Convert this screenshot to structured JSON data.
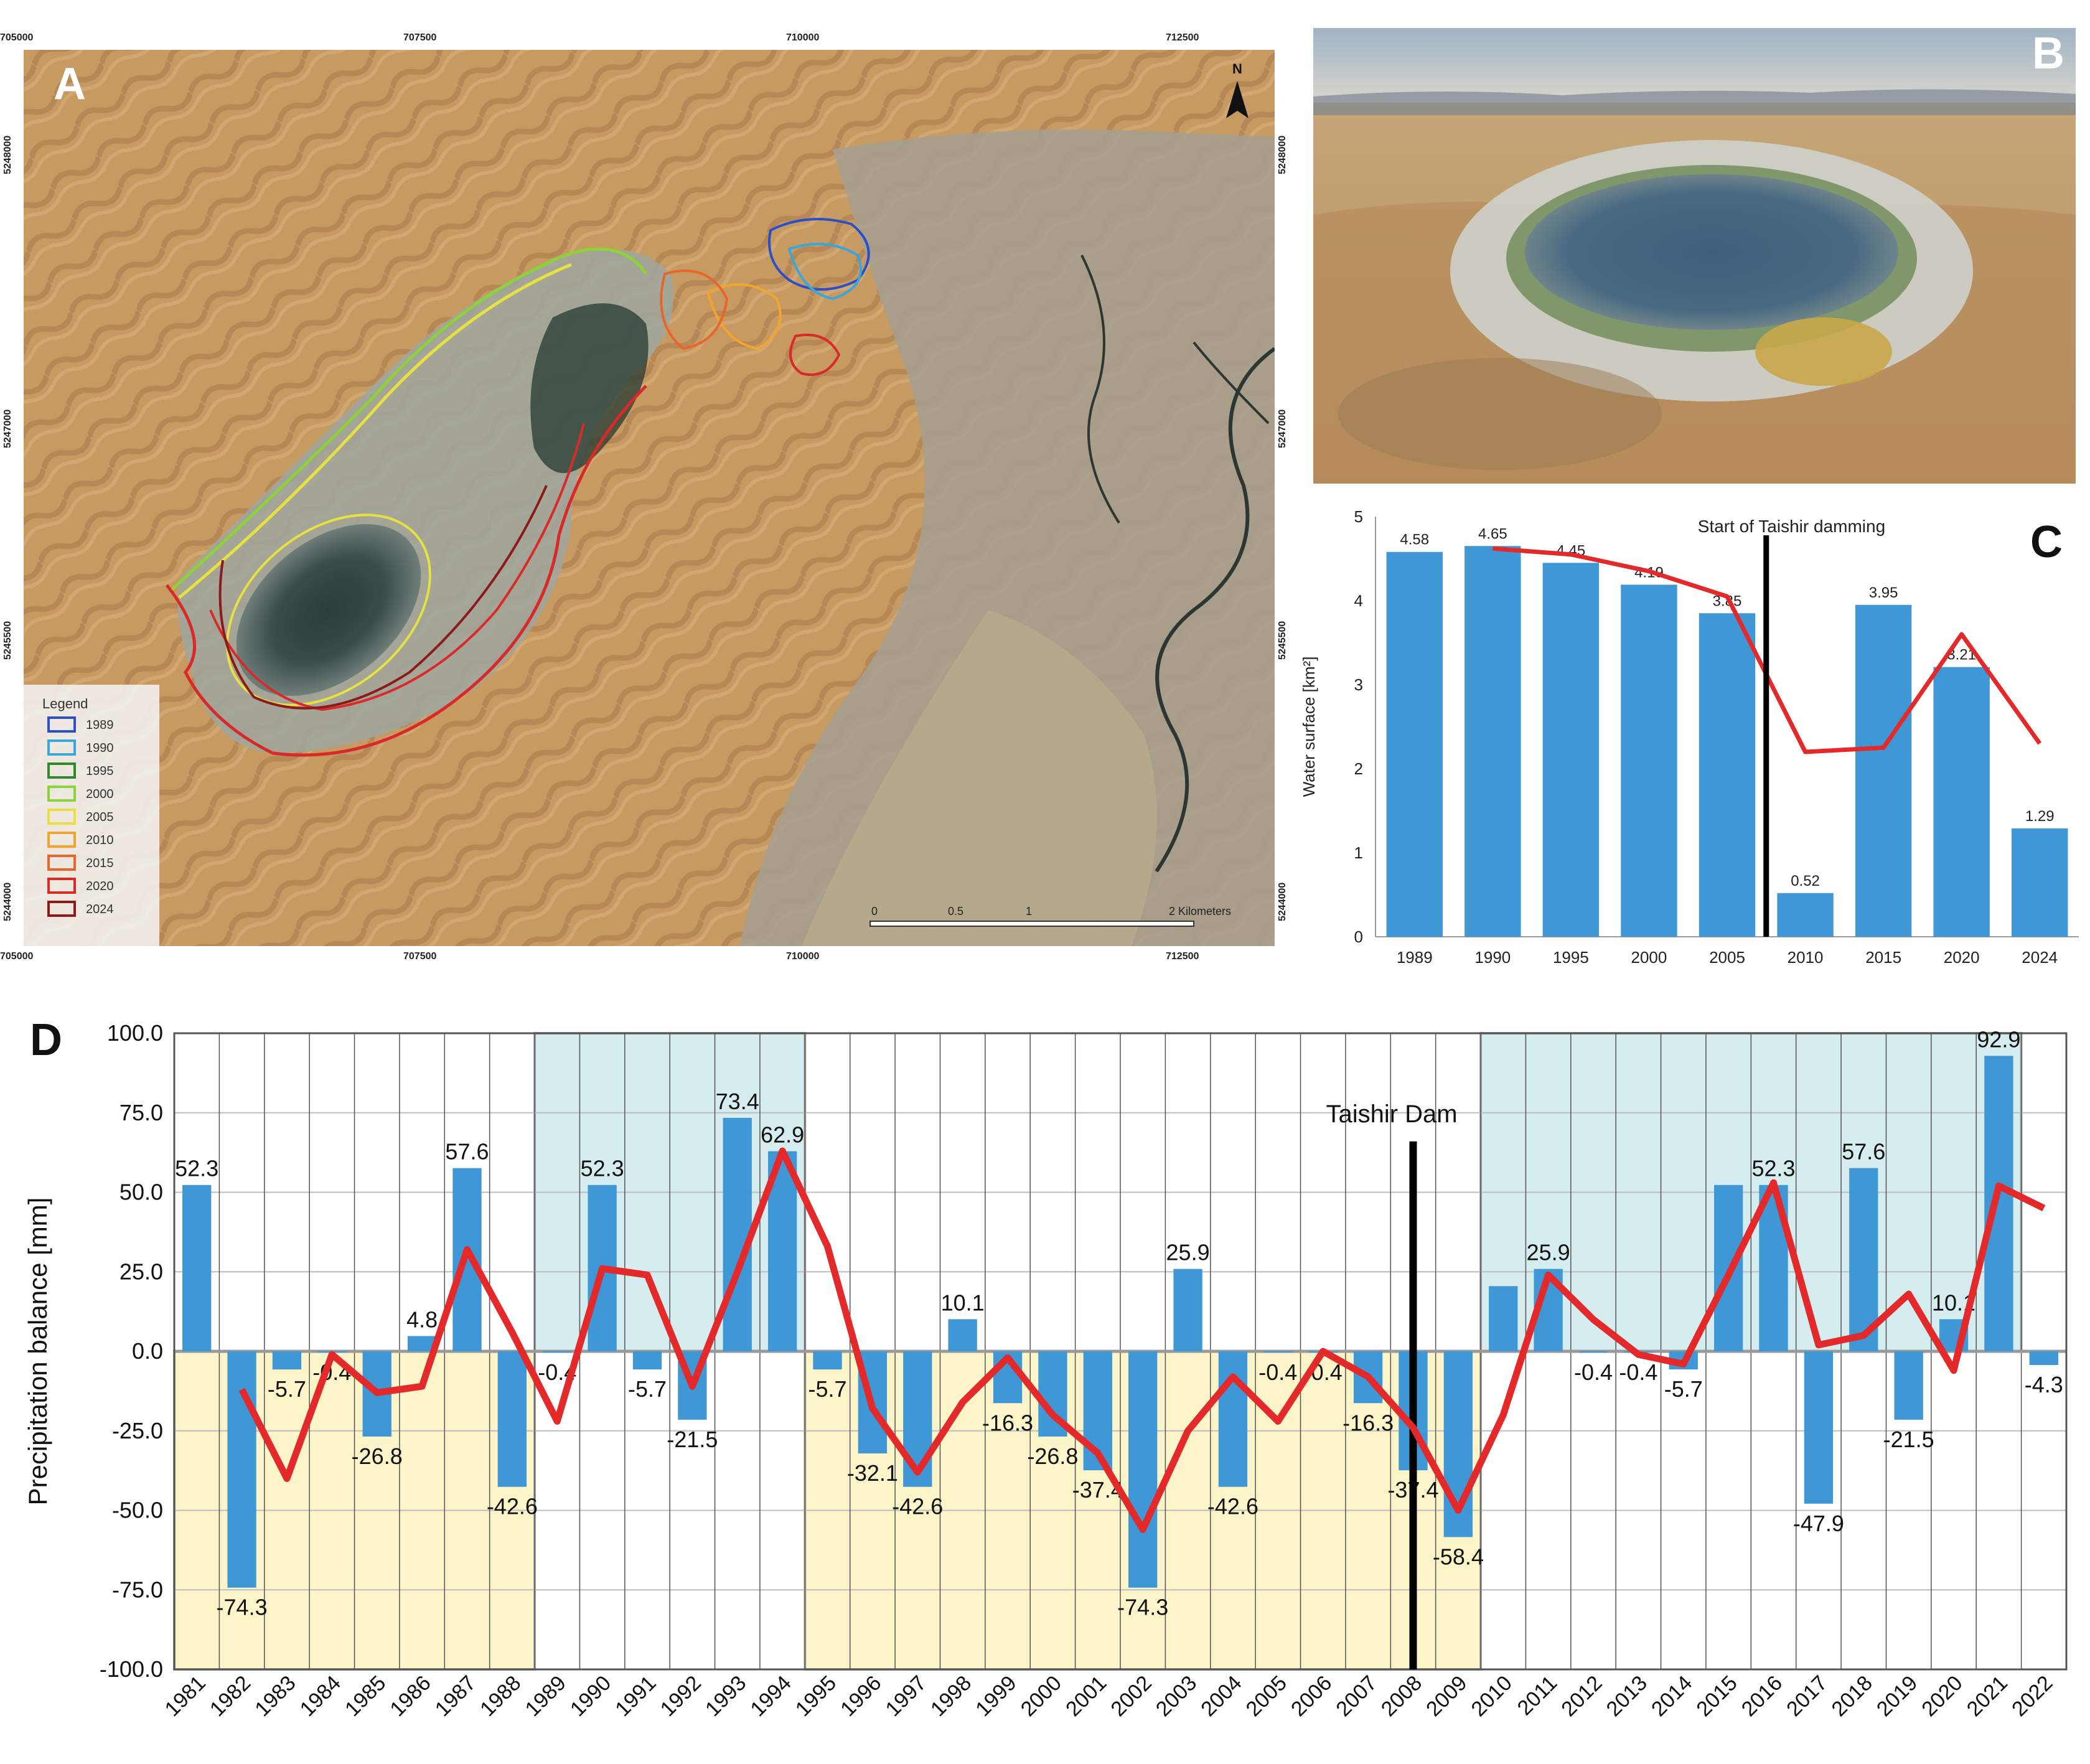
{
  "panel_labels": {
    "a": "A",
    "b": "B",
    "c": "C",
    "d": "D"
  },
  "map_a": {
    "top_ticks": [
      "705000",
      "707500",
      "710000",
      "712500"
    ],
    "bottom_ticks": [
      "705000",
      "707500",
      "710000",
      "712500"
    ],
    "left_ticks": [
      "5248000",
      "5247000",
      "5245500",
      "5244000"
    ],
    "right_ticks": [
      "5248000",
      "5247000",
      "5245500",
      "5244000"
    ],
    "north_label": "N",
    "legend_title": "Legend",
    "legend": [
      {
        "year": "1989",
        "color": "#2a4fc8"
      },
      {
        "year": "1990",
        "color": "#3aa7d8"
      },
      {
        "year": "1995",
        "color": "#2f8a2f"
      },
      {
        "year": "2000",
        "color": "#8fd13a"
      },
      {
        "year": "2005",
        "color": "#e6e043"
      },
      {
        "year": "2010",
        "color": "#f0a530"
      },
      {
        "year": "2015",
        "color": "#e8662b"
      },
      {
        "year": "2020",
        "color": "#d92a2a"
      },
      {
        "year": "2024",
        "color": "#8c1a1a"
      }
    ],
    "scale_labels": [
      "0",
      "0.5",
      "1",
      "2 Kilometers"
    ]
  },
  "chart_data": [
    {
      "type": "bar",
      "panel": "C",
      "categories": [
        "1989",
        "1990",
        "1995",
        "2000",
        "2005",
        "2010",
        "2015",
        "2020",
        "2024"
      ],
      "values": [
        4.58,
        4.65,
        4.45,
        4.19,
        3.85,
        0.52,
        3.95,
        3.21,
        1.29
      ],
      "value_labels": [
        "4.58",
        "4.65",
        "4.45",
        "4.19",
        "3.85",
        "0.52",
        "3.95",
        "3.21",
        "1.29"
      ],
      "trend_line": [
        null,
        4.62,
        4.55,
        4.35,
        4.05,
        2.2,
        2.25,
        3.6,
        2.3
      ],
      "ylabel": "Water surface [km²]",
      "ylim": [
        0,
        5
      ],
      "yticks": [
        "0",
        "1",
        "2",
        "3",
        "4",
        "5"
      ],
      "annotation": "Start of Taishir damming",
      "annotation_x": 2007.5,
      "bar_color": "#3f97d6",
      "line_color": "#e3292a",
      "grid": false
    },
    {
      "type": "bar",
      "panel": "D",
      "categories": [
        "1981",
        "1982",
        "1983",
        "1984",
        "1985",
        "1986",
        "1987",
        "1988",
        "1989",
        "1990",
        "1991",
        "1992",
        "1993",
        "1994",
        "1995",
        "1996",
        "1997",
        "1998",
        "1999",
        "2000",
        "2001",
        "2002",
        "2003",
        "2004",
        "2005",
        "2006",
        "2007",
        "2008",
        "2009",
        "2010",
        "2011",
        "2012",
        "2013",
        "2014",
        "2015",
        "2016",
        "2017",
        "2018",
        "2019",
        "2020",
        "2021",
        "2022"
      ],
      "values": [
        52.3,
        -74.3,
        -5.7,
        -0.4,
        -26.8,
        4.8,
        57.6,
        -42.6,
        -0.4,
        52.3,
        -5.7,
        -21.5,
        73.4,
        62.9,
        -5.7,
        -32.1,
        -42.6,
        10.1,
        -16.3,
        -26.8,
        -37.4,
        -74.3,
        25.9,
        -42.6,
        -0.4,
        -0.4,
        -16.3,
        -37.4,
        -58.4,
        20.5,
        25.9,
        -0.4,
        -0.4,
        -5.7,
        52.3,
        52.3,
        -47.9,
        57.6,
        -21.5,
        10.1,
        92.9,
        -4.3
      ],
      "value_labels": [
        "52.3",
        "-74.3",
        "-5.7",
        "-0.4",
        "-26.8",
        "4.8",
        "57.6",
        "-42.6",
        "-0.4",
        "52.3",
        "-5.7",
        "-21.5",
        "73.4",
        "62.9",
        "-5.7",
        "-32.1",
        "-42.6",
        "10.1",
        "-16.3",
        "-26.8",
        "-37.4",
        "-74.3",
        "25.9",
        "-42.6",
        "-0.4",
        "-0.4",
        "-16.3",
        "-37.4",
        "-58.4",
        "",
        "25.9",
        "-0.4",
        "-0.4",
        "-5.7",
        "",
        "52.3",
        "-47.9",
        "57.6",
        "-21.5",
        "10.1",
        "92.9",
        "-4.3"
      ],
      "trend_line": [
        null,
        -12,
        -40,
        -1,
        -13,
        -11,
        32,
        6,
        -22,
        26,
        24,
        -11,
        25,
        63,
        33,
        -18,
        -38,
        -16,
        -2,
        -20,
        -32,
        -56,
        -25,
        -8,
        -22,
        0,
        -8,
        -24,
        -50,
        -20,
        24,
        10,
        -1,
        -4,
        24,
        53,
        2,
        5,
        18,
        -6,
        52,
        45
      ],
      "ylabel": "Precipitation balance [mm]",
      "ylim": [
        -100,
        100
      ],
      "yticks": [
        "-100.0",
        "-75.0",
        "-50.0",
        "-25.0",
        "0.0",
        "25.0",
        "50.0",
        "75.0",
        "100.0"
      ],
      "annotation": "Taishir Dam",
      "annotation_x": 2008,
      "wet_periods": [
        [
          "1989",
          "1994"
        ],
        [
          "2010",
          "2021"
        ]
      ],
      "dry_periods": [
        [
          "1981",
          "1988"
        ],
        [
          "1995",
          "2009"
        ]
      ],
      "bar_color": "#3f97d6",
      "line_color": "#e3292a",
      "wet_color": "#d6edf0",
      "dry_color": "#fbf5c9",
      "grid": true
    }
  ]
}
